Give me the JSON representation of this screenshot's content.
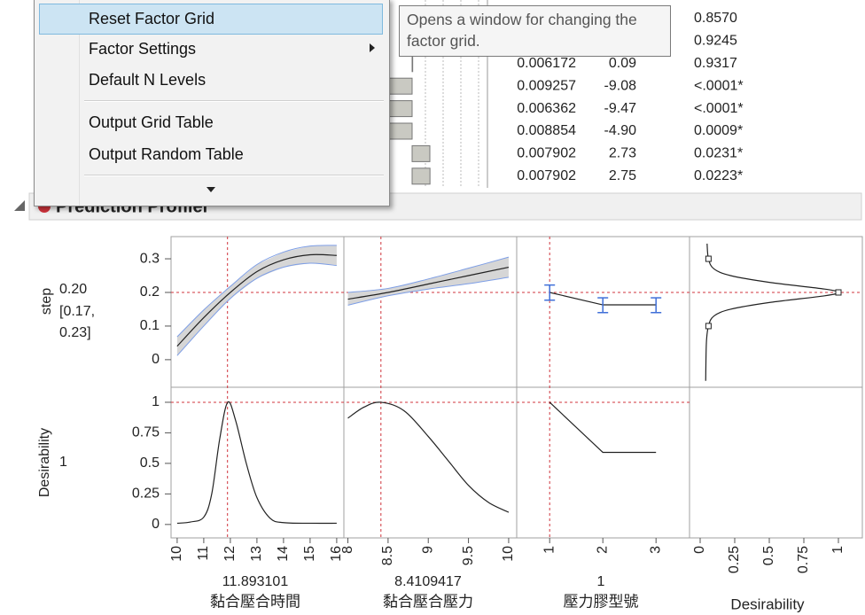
{
  "table": {
    "rows": [
      {
        "p_value": "0.8570",
        "p_color": "#222222"
      },
      {
        "p_value": "0.9245",
        "p_color": "#222222"
      },
      {
        "std_error": "0.006172",
        "t_ratio": 0.09,
        "p_value": "0.9317",
        "p_color": "#222222"
      },
      {
        "std_error": "0.009257",
        "t_ratio": -9.08,
        "p_value": "<.0001*",
        "p_color": "#e07b1a"
      },
      {
        "std_error": "0.006362",
        "t_ratio": -9.47,
        "p_value": "<.0001*",
        "p_color": "#e07b1a"
      },
      {
        "std_error": "0.008854",
        "t_ratio": {
          "value": -4.9,
          "label": "-4.90"
        },
        "p_value": "0.0009*",
        "p_color": "#e07b1a"
      },
      {
        "std_error": "0.007902",
        "t_ratio": 2.73,
        "p_value": "0.0231*",
        "p_color": "#d6283c"
      },
      {
        "std_error": "0.007902",
        "t_ratio": 2.75,
        "p_value": "0.0223*",
        "p_color": "#d6283c"
      }
    ]
  },
  "menu": {
    "items": [
      {
        "label": "Reset Factor Grid",
        "highlighted": true
      },
      {
        "label": "Factor Settings",
        "submenu": true
      },
      {
        "label": "Default N Levels"
      },
      {
        "label": "Output Grid Table",
        "separator_before": true
      },
      {
        "label": "Output Random Table"
      }
    ]
  },
  "tooltip": {
    "text": "Opens a window for changing the factor grid."
  },
  "profiler": {
    "title": "Prediction Profiler",
    "line_color": "#222222",
    "band_color": "#d6d6d6",
    "band_edge": "#7d9ee6",
    "ref_color": "#d0343c",
    "ci_color": "#3f6fd8",
    "responses": [
      {
        "name": "step",
        "current": {
          "value": 0.2,
          "label": "0.20"
        },
        "ci_labels": [
          "[0.17,",
          "0.23]"
        ],
        "ylim": [
          -0.082,
          0.366
        ],
        "yticks": [
          0,
          0.1,
          0.2,
          0.3
        ]
      },
      {
        "name": "Desirability",
        "current": 1,
        "ylim": [
          -0.11,
          1.123
        ],
        "yticks": [
          0,
          0.25,
          0.5,
          0.75,
          1
        ]
      }
    ],
    "factors": [
      {
        "name": "黏合壓合時間",
        "current": 11.893101,
        "xlim": [
          9.77,
          16.27
        ],
        "xticks": [
          10,
          11,
          12,
          13,
          14,
          15,
          16
        ],
        "step": {
          "x": [
            10,
            11,
            12,
            13,
            14,
            15,
            16
          ],
          "y": [
            0.04,
            0.125,
            0.2,
            0.262,
            0.297,
            0.312,
            0.31
          ],
          "lower": [
            0.012,
            0.1,
            0.182,
            0.242,
            0.275,
            0.287,
            0.28
          ],
          "upper": [
            0.068,
            0.148,
            0.218,
            0.283,
            0.32,
            0.338,
            0.34
          ]
        },
        "desirability": {
          "x": [
            10,
            10.5,
            11,
            11.3,
            11.6,
            11.9,
            12.2,
            12.6,
            13,
            13.5,
            14,
            15,
            16
          ],
          "y": [
            0.01,
            0.02,
            0.06,
            0.25,
            0.7,
            1,
            0.85,
            0.5,
            0.22,
            0.05,
            0.015,
            0.01,
            0.01
          ]
        }
      },
      {
        "name": "黏合壓合壓力",
        "current": 8.4109417,
        "xlim": [
          7.95,
          10.1
        ],
        "xticks": [
          8,
          8.5,
          9,
          9.5,
          10
        ],
        "step": {
          "x": [
            8,
            8.5,
            9,
            9.5,
            10
          ],
          "y": [
            0.18,
            0.2,
            0.225,
            0.25,
            0.275
          ],
          "lower": [
            0.162,
            0.19,
            0.21,
            0.226,
            0.245
          ],
          "upper": [
            0.2,
            0.212,
            0.24,
            0.272,
            0.305
          ]
        },
        "desirability": {
          "x": [
            8,
            8.2,
            8.41,
            8.7,
            9,
            9.25,
            9.5,
            9.75,
            10
          ],
          "y": [
            0.87,
            0.96,
            1,
            0.93,
            0.72,
            0.52,
            0.32,
            0.18,
            0.1
          ]
        }
      },
      {
        "name": "壓力膠型號",
        "current": 1,
        "categorical": true,
        "xlim": [
          0.38,
          3.63
        ],
        "xticks": [
          1,
          2,
          3
        ],
        "step": {
          "x": [
            1,
            2,
            3
          ],
          "y": [
            0.2,
            0.163,
            0.163
          ],
          "lower": [
            0.177,
            0.14,
            0.14
          ],
          "upper": [
            0.222,
            0.184,
            0.184
          ]
        },
        "desirability": {
          "x": [
            1,
            2,
            3
          ],
          "y": [
            1,
            0.59,
            0.59
          ]
        }
      }
    ],
    "desirability_function": {
      "name": "Desirability",
      "xlim": [
        -0.077,
        1.173
      ],
      "xticks": [
        0,
        0.25,
        0.5,
        0.75,
        1
      ],
      "step": [
        -0.063,
        0.05,
        0.1,
        0.13,
        0.15,
        0.17,
        0.19,
        0.2,
        0.21,
        0.23,
        0.25,
        0.27,
        0.3,
        0.345
      ],
      "desirability": [
        0.04,
        0.045,
        0.06,
        0.1,
        0.22,
        0.5,
        0.9,
        1,
        0.9,
        0.5,
        0.22,
        0.1,
        0.06,
        0.05
      ],
      "markers": {
        "step": [
          0.1,
          0.2,
          0.3
        ],
        "desirability": [
          0.06,
          1,
          0.06
        ]
      }
    }
  }
}
